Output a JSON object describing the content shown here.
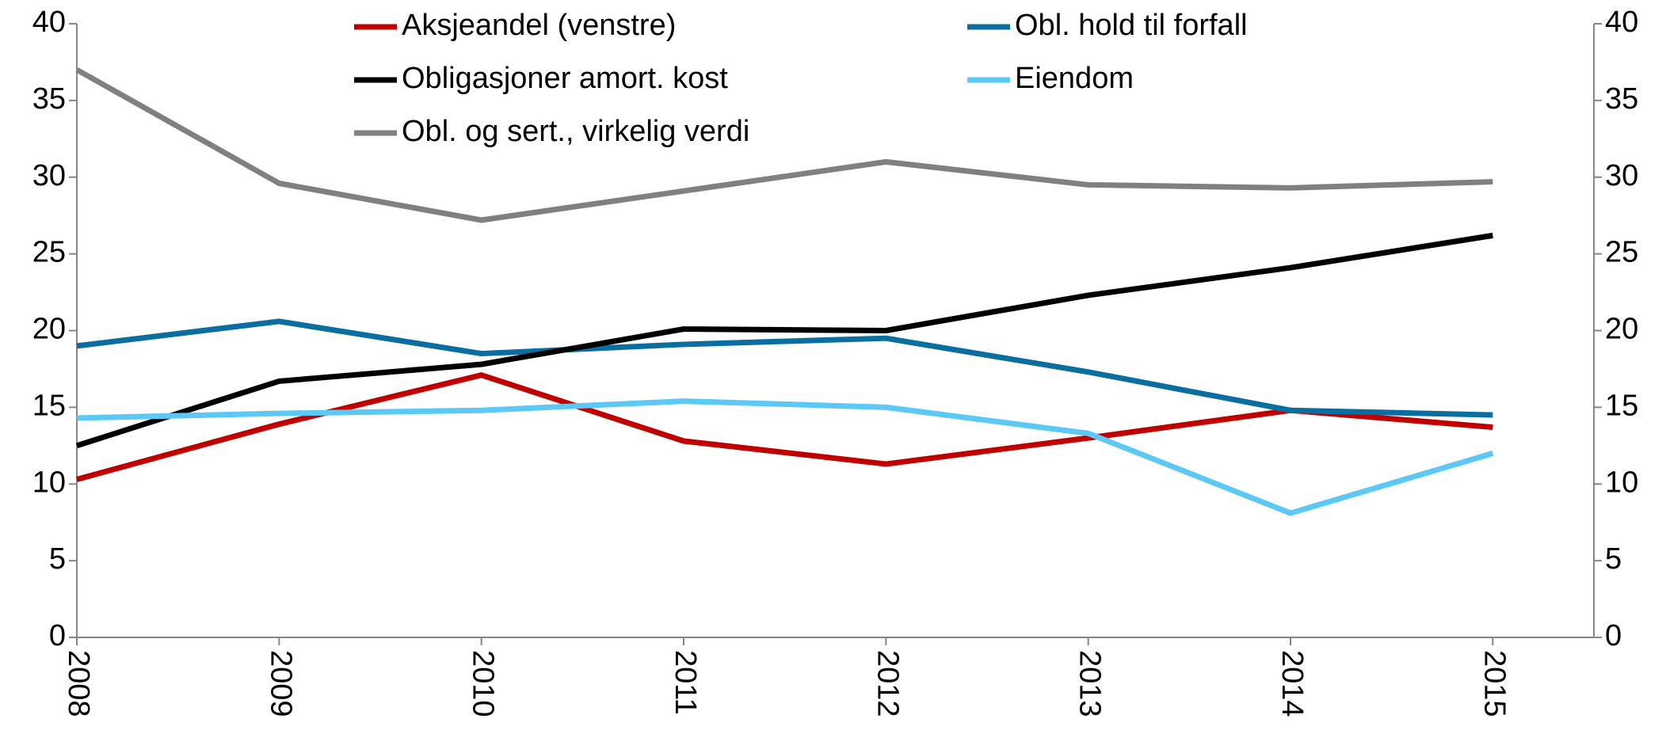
{
  "chart_data": {
    "type": "line",
    "categories": [
      "2008",
      "2009",
      "2010",
      "2011",
      "2012",
      "2013",
      "2014",
      "2015"
    ],
    "series": [
      {
        "name": "Aksjeandel (venstre)",
        "color": "#c00000",
        "values": [
          10.3,
          13.9,
          17.1,
          12.8,
          11.3,
          13.0,
          14.8,
          13.7
        ]
      },
      {
        "name": "Obl. hold til forfall",
        "color": "#0a6fa0",
        "axis": "y2",
        "values": [
          19.0,
          20.6,
          18.5,
          19.1,
          19.5,
          17.3,
          14.8,
          14.5
        ]
      },
      {
        "name": "Obligasjoner amort. kost",
        "color": "#000000",
        "axis": "y2",
        "values": [
          12.5,
          16.7,
          17.8,
          20.1,
          20.0,
          22.3,
          24.1,
          26.2
        ]
      },
      {
        "name": "Eiendom",
        "color": "#5bc8f5",
        "axis": "y2",
        "values": [
          14.3,
          14.6,
          14.8,
          15.4,
          15.0,
          13.3,
          8.1,
          12.0
        ]
      },
      {
        "name": "Obl. og sert., virkelig verdi",
        "color": "#808080",
        "axis": "y2",
        "values": [
          37.0,
          29.6,
          27.2,
          29.1,
          31.0,
          29.5,
          29.3,
          29.7
        ]
      }
    ],
    "ylim": [
      0,
      40
    ],
    "yticks": [
      0,
      5,
      10,
      15,
      20,
      25,
      30,
      35,
      40
    ],
    "y2lim": [
      0,
      40
    ],
    "y2ticks": [
      0,
      5,
      10,
      15,
      20,
      25,
      30,
      35,
      40
    ],
    "grid": false
  }
}
